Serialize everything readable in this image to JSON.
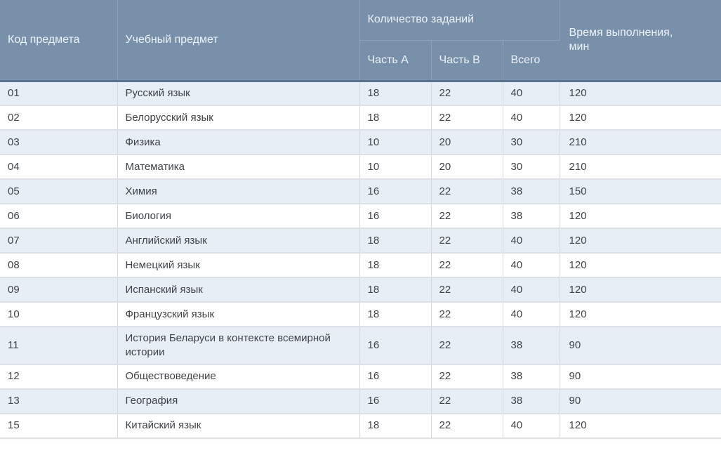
{
  "table": {
    "title_semantic": "Таблица учебных предметов",
    "colors": {
      "header_bg": "#7890a9",
      "header_text": "#edf2f8",
      "header_divider": "#91a1b4",
      "header_bottom_border": "#5e7390",
      "row_alt_bg": "#e7eef6",
      "row_bg": "#ffffff",
      "row_border": "#dde1e5",
      "body_text": "#3f4449"
    },
    "headers": {
      "code": "Код предмета",
      "subject": "Учебный предмет",
      "tasks_group": "Количество заданий",
      "part_a": "Часть А",
      "part_b": "Часть В",
      "total": "Всего",
      "time": "Время выполнения,\nмин"
    },
    "rows": [
      {
        "code": "01",
        "subject": "Русский язык",
        "part_a": "18",
        "part_b": "22",
        "total": "40",
        "time": "120"
      },
      {
        "code": "02",
        "subject": "Белорусский язык",
        "part_a": "18",
        "part_b": "22",
        "total": "40",
        "time": "120"
      },
      {
        "code": "03",
        "subject": "Физика",
        "part_a": "10",
        "part_b": "20",
        "total": "30",
        "time": "210"
      },
      {
        "code": "04",
        "subject": "Математика",
        "part_a": "10",
        "part_b": "20",
        "total": "30",
        "time": "210"
      },
      {
        "code": "05",
        "subject": "Химия",
        "part_a": "16",
        "part_b": "22",
        "total": "38",
        "time": "150"
      },
      {
        "code": "06",
        "subject": "Биология",
        "part_a": "16",
        "part_b": "22",
        "total": "38",
        "time": "120"
      },
      {
        "code": "07",
        "subject": "Английский язык",
        "part_a": "18",
        "part_b": "22",
        "total": "40",
        "time": "120"
      },
      {
        "code": "08",
        "subject": "Немецкий язык",
        "part_a": "18",
        "part_b": "22",
        "total": "40",
        "time": "120"
      },
      {
        "code": "09",
        "subject": "Испанский язык",
        "part_a": "18",
        "part_b": "22",
        "total": "40",
        "time": "120"
      },
      {
        "code": "10",
        "subject": "Французский язык",
        "part_a": "18",
        "part_b": "22",
        "total": "40",
        "time": "120"
      },
      {
        "code": "11",
        "subject": "История Беларуси в контексте всемирной истории",
        "part_a": "16",
        "part_b": "22",
        "total": "38",
        "time": "90"
      },
      {
        "code": "12",
        "subject": "Обществоведение",
        "part_a": "16",
        "part_b": "22",
        "total": "38",
        "time": "90"
      },
      {
        "code": "13",
        "subject": "География",
        "part_a": "16",
        "part_b": "22",
        "total": "38",
        "time": "90"
      },
      {
        "code": "15",
        "subject": "Китайский язык",
        "part_a": "18",
        "part_b": "22",
        "total": "40",
        "time": "120"
      }
    ]
  }
}
